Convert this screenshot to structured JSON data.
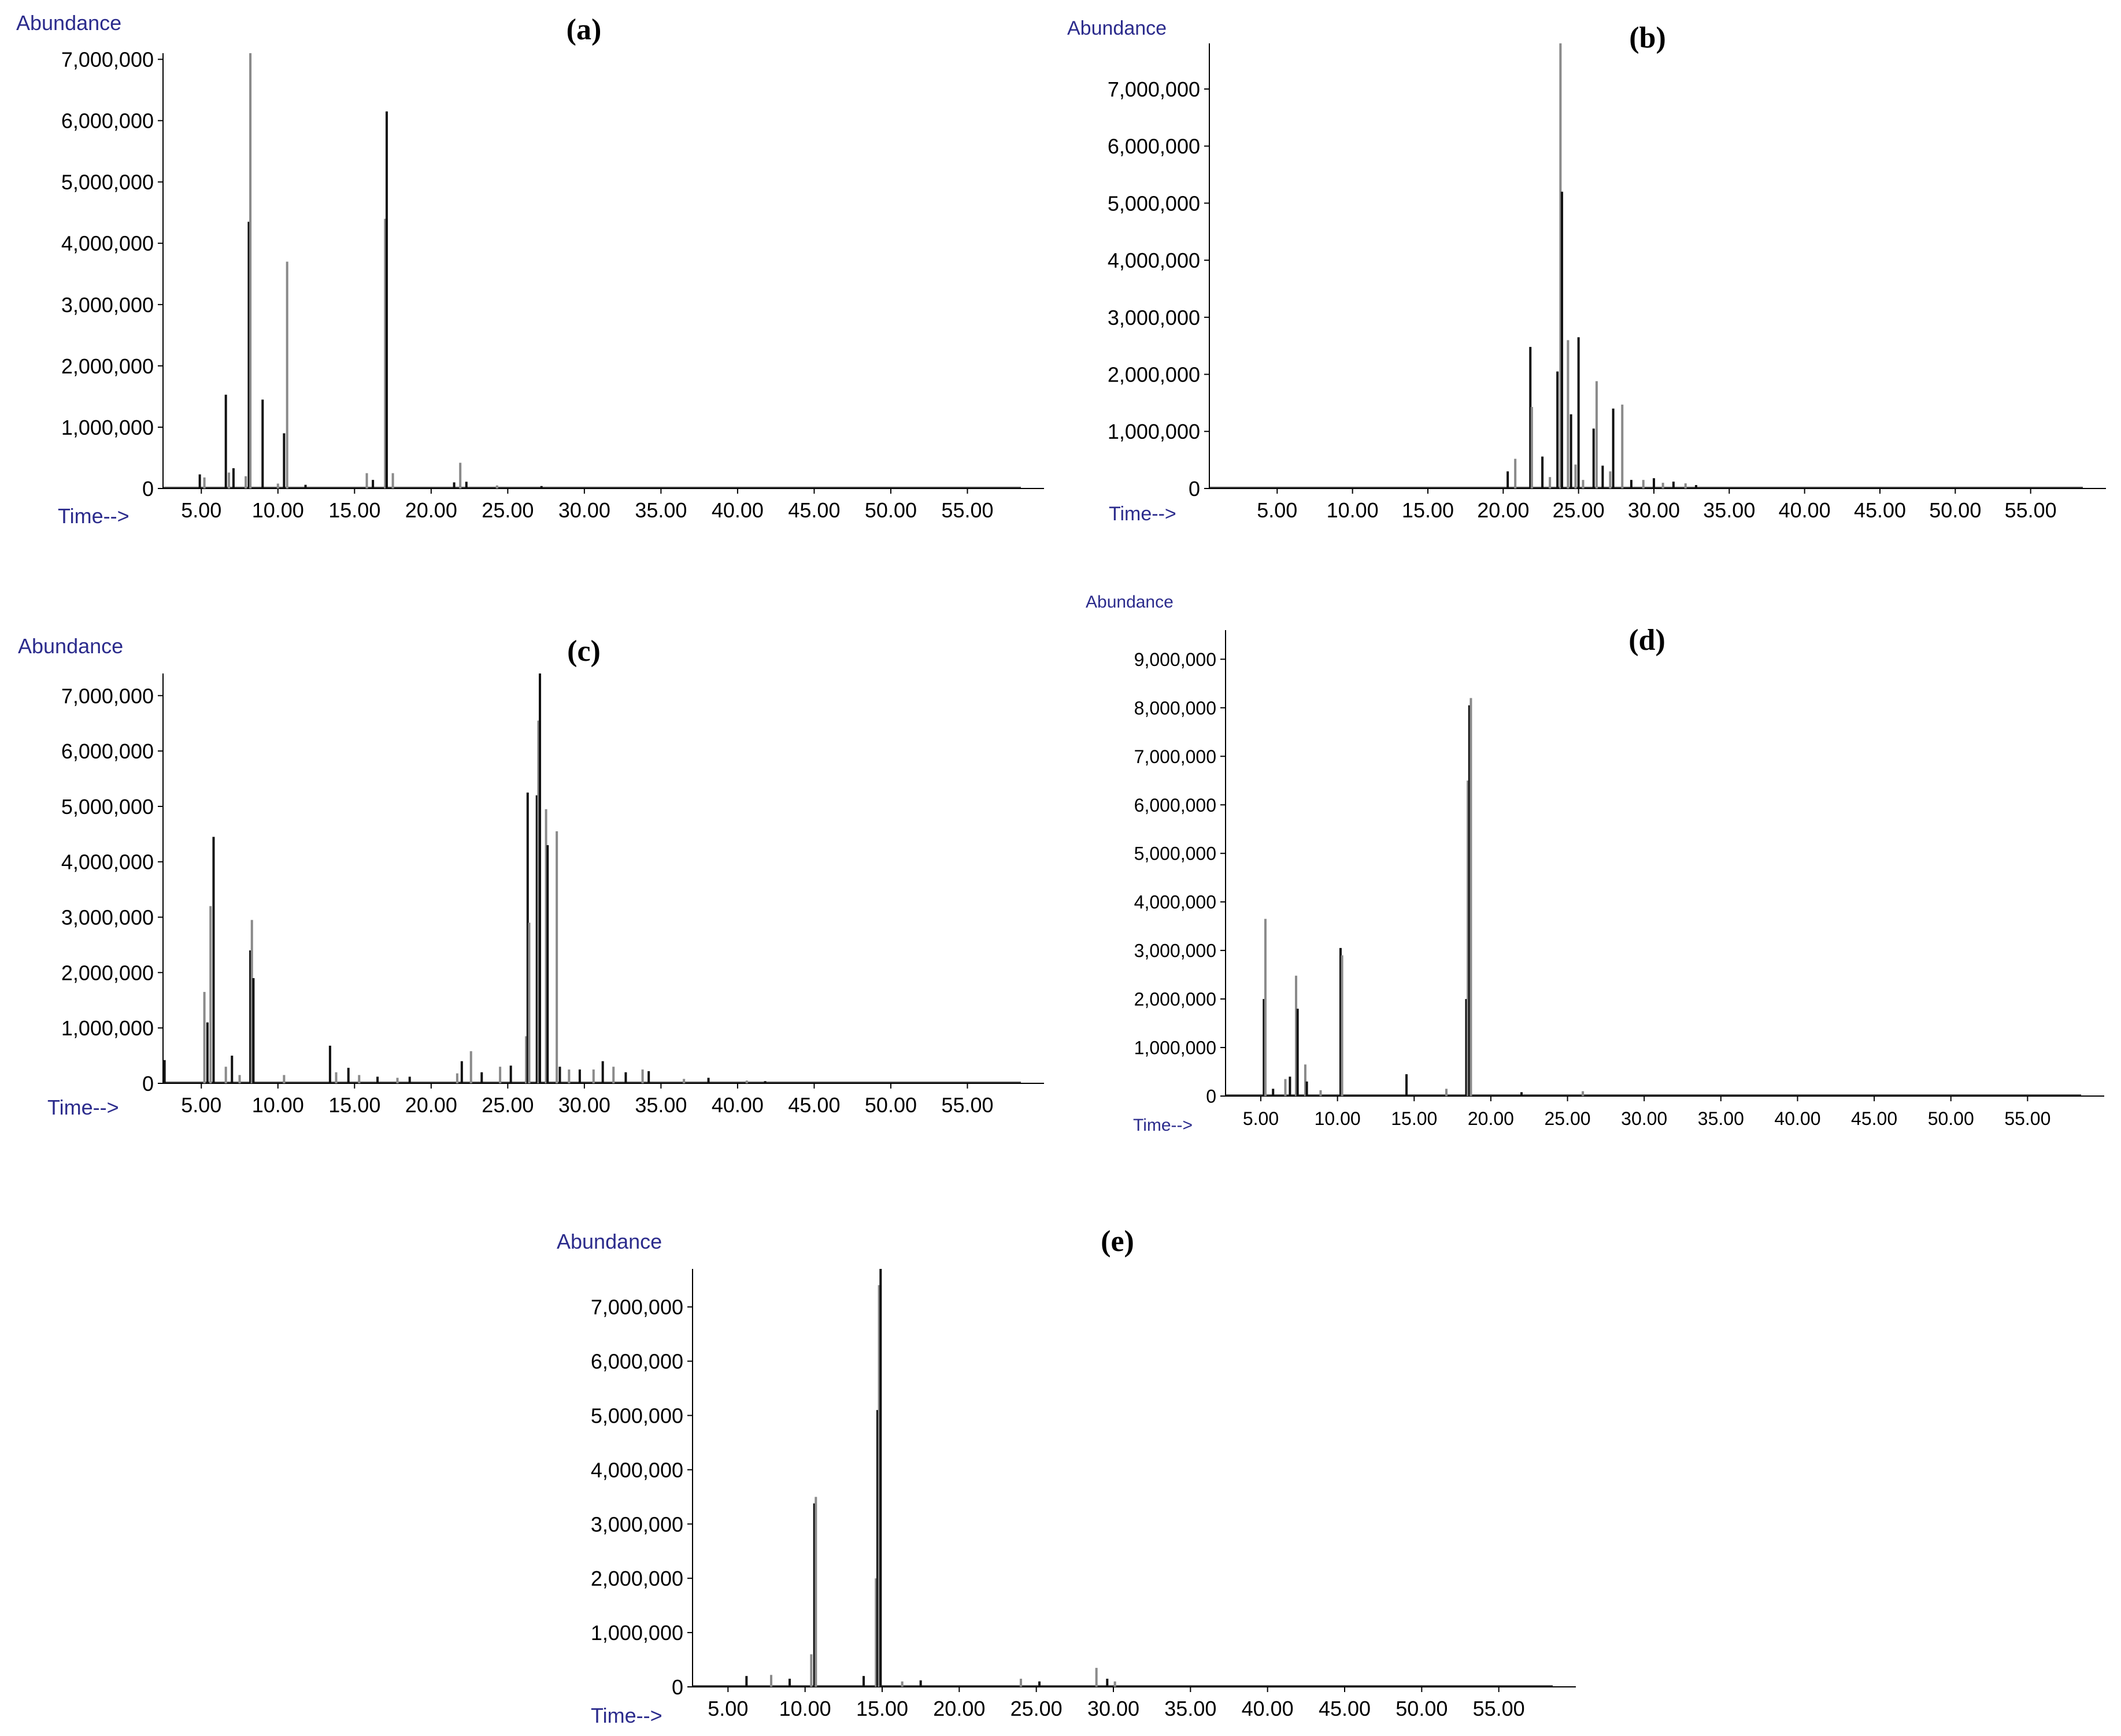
{
  "colors": {
    "axis_label": "#2b2b8c",
    "trace_dark": "#111111",
    "trace_light": "#8a8a8a",
    "axis": "#000000",
    "background": "#ffffff"
  },
  "chart_data": [
    {
      "panel": "(a)",
      "type": "line",
      "y_axis_title": "Abundance",
      "x_axis_title": "Time-->",
      "x_tick_labels": [
        "5.00",
        "10.00",
        "15.00",
        "20.00",
        "25.00",
        "30.00",
        "35.00",
        "40.00",
        "45.00",
        "50.00",
        "55.00"
      ],
      "y_tick_labels": [
        "0",
        "1,000,000",
        "2,000,000",
        "3,000,000",
        "4,000,000",
        "5,000,000",
        "6,000,000",
        "7,000,000"
      ],
      "xlim": [
        2.5,
        60
      ],
      "ylim": [
        0,
        7100000
      ],
      "peaks": [
        {
          "x": 4.9,
          "y": 230000
        },
        {
          "x": 5.2,
          "y": 180000
        },
        {
          "x": 6.6,
          "y": 1530000
        },
        {
          "x": 6.8,
          "y": 260000
        },
        {
          "x": 7.1,
          "y": 330000
        },
        {
          "x": 7.9,
          "y": 200000
        },
        {
          "x": 8.1,
          "y": 4350000
        },
        {
          "x": 8.2,
          "y": 7100000
        },
        {
          "x": 9.0,
          "y": 1450000
        },
        {
          "x": 10.0,
          "y": 80000
        },
        {
          "x": 10.4,
          "y": 900000
        },
        {
          "x": 10.6,
          "y": 3700000
        },
        {
          "x": 11.8,
          "y": 60000
        },
        {
          "x": 15.8,
          "y": 250000
        },
        {
          "x": 16.2,
          "y": 140000
        },
        {
          "x": 17.0,
          "y": 4400000
        },
        {
          "x": 17.1,
          "y": 6150000
        },
        {
          "x": 17.5,
          "y": 250000
        },
        {
          "x": 21.5,
          "y": 100000
        },
        {
          "x": 21.9,
          "y": 420000
        },
        {
          "x": 22.3,
          "y": 110000
        },
        {
          "x": 24.3,
          "y": 50000
        },
        {
          "x": 27.2,
          "y": 40000
        }
      ]
    },
    {
      "panel": "(b)",
      "type": "line",
      "y_axis_title": "Abundance",
      "x_axis_title": "Time-->",
      "x_tick_labels": [
        "5.00",
        "10.00",
        "15.00",
        "20.00",
        "25.00",
        "30.00",
        "35.00",
        "40.00",
        "45.00",
        "50.00",
        "55.00"
      ],
      "y_tick_labels": [
        "0",
        "1,000,000",
        "2,000,000",
        "3,000,000",
        "4,000,000",
        "5,000,000",
        "6,000,000",
        "7,000,000"
      ],
      "xlim": [
        0.5,
        60
      ],
      "ylim": [
        0,
        7800000
      ],
      "peaks": [
        {
          "x": 20.3,
          "y": 300000
        },
        {
          "x": 20.8,
          "y": 520000
        },
        {
          "x": 21.8,
          "y": 2480000
        },
        {
          "x": 21.9,
          "y": 1430000
        },
        {
          "x": 22.6,
          "y": 560000
        },
        {
          "x": 23.1,
          "y": 200000
        },
        {
          "x": 23.6,
          "y": 2050000
        },
        {
          "x": 23.8,
          "y": 7800000
        },
        {
          "x": 23.9,
          "y": 5200000
        },
        {
          "x": 24.3,
          "y": 2600000
        },
        {
          "x": 24.5,
          "y": 1300000
        },
        {
          "x": 24.8,
          "y": 420000
        },
        {
          "x": 25.0,
          "y": 2650000
        },
        {
          "x": 25.3,
          "y": 150000
        },
        {
          "x": 26.0,
          "y": 1050000
        },
        {
          "x": 26.2,
          "y": 1880000
        },
        {
          "x": 26.6,
          "y": 400000
        },
        {
          "x": 27.1,
          "y": 300000
        },
        {
          "x": 27.3,
          "y": 1400000
        },
        {
          "x": 27.9,
          "y": 1470000
        },
        {
          "x": 28.5,
          "y": 150000
        },
        {
          "x": 29.3,
          "y": 150000
        },
        {
          "x": 30.0,
          "y": 180000
        },
        {
          "x": 30.6,
          "y": 100000
        },
        {
          "x": 31.3,
          "y": 120000
        },
        {
          "x": 32.1,
          "y": 90000
        },
        {
          "x": 32.8,
          "y": 60000
        }
      ]
    },
    {
      "panel": "(c)",
      "type": "line",
      "y_axis_title": "Abundance",
      "x_axis_title": "Time-->",
      "x_tick_labels": [
        "5.00",
        "10.00",
        "15.00",
        "20.00",
        "25.00",
        "30.00",
        "35.00",
        "40.00",
        "45.00",
        "50.00",
        "55.00"
      ],
      "y_tick_labels": [
        "0",
        "1,000,000",
        "2,000,000",
        "3,000,000",
        "4,000,000",
        "5,000,000",
        "6,000,000",
        "7,000,000"
      ],
      "xlim": [
        2.5,
        60
      ],
      "ylim": [
        0,
        7400000
      ],
      "peaks": [
        {
          "x": 2.6,
          "y": 420000
        },
        {
          "x": 5.2,
          "y": 1650000
        },
        {
          "x": 5.4,
          "y": 1100000
        },
        {
          "x": 5.6,
          "y": 3200000
        },
        {
          "x": 5.8,
          "y": 4450000
        },
        {
          "x": 6.6,
          "y": 300000
        },
        {
          "x": 7.0,
          "y": 500000
        },
        {
          "x": 7.5,
          "y": 150000
        },
        {
          "x": 8.2,
          "y": 2400000
        },
        {
          "x": 8.3,
          "y": 2950000
        },
        {
          "x": 8.4,
          "y": 1900000
        },
        {
          "x": 10.4,
          "y": 150000
        },
        {
          "x": 13.4,
          "y": 680000
        },
        {
          "x": 13.8,
          "y": 200000
        },
        {
          "x": 14.6,
          "y": 280000
        },
        {
          "x": 15.3,
          "y": 150000
        },
        {
          "x": 16.5,
          "y": 120000
        },
        {
          "x": 17.8,
          "y": 100000
        },
        {
          "x": 18.6,
          "y": 120000
        },
        {
          "x": 21.7,
          "y": 180000
        },
        {
          "x": 22.0,
          "y": 400000
        },
        {
          "x": 22.6,
          "y": 580000
        },
        {
          "x": 23.3,
          "y": 200000
        },
        {
          "x": 24.5,
          "y": 300000
        },
        {
          "x": 25.2,
          "y": 320000
        },
        {
          "x": 26.2,
          "y": 850000
        },
        {
          "x": 26.3,
          "y": 5250000
        },
        {
          "x": 26.4,
          "y": 2900000
        },
        {
          "x": 26.9,
          "y": 5200000
        },
        {
          "x": 27.0,
          "y": 6550000
        },
        {
          "x": 27.1,
          "y": 7400000
        },
        {
          "x": 27.5,
          "y": 4950000
        },
        {
          "x": 27.6,
          "y": 4300000
        },
        {
          "x": 28.2,
          "y": 4550000
        },
        {
          "x": 28.4,
          "y": 300000
        },
        {
          "x": 29.0,
          "y": 250000
        },
        {
          "x": 29.7,
          "y": 250000
        },
        {
          "x": 30.6,
          "y": 250000
        },
        {
          "x": 31.2,
          "y": 400000
        },
        {
          "x": 31.9,
          "y": 300000
        },
        {
          "x": 32.7,
          "y": 200000
        },
        {
          "x": 33.8,
          "y": 250000
        },
        {
          "x": 34.2,
          "y": 220000
        },
        {
          "x": 36.5,
          "y": 80000
        },
        {
          "x": 38.1,
          "y": 100000
        },
        {
          "x": 40.6,
          "y": 50000
        },
        {
          "x": 41.8,
          "y": 40000
        }
      ]
    },
    {
      "panel": "(d)",
      "type": "line",
      "y_axis_title": "Abundance",
      "x_axis_title": "Time-->",
      "x_tick_labels": [
        "5.00",
        "10.00",
        "15.00",
        "20.00",
        "25.00",
        "30.00",
        "35.00",
        "40.00",
        "45.00",
        "50.00",
        "55.00"
      ],
      "y_tick_labels": [
        "0",
        "1,000,000",
        "2,000,000",
        "3,000,000",
        "4,000,000",
        "5,000,000",
        "6,000,000",
        "7,000,000",
        "8,000,000",
        "9,000,000"
      ],
      "xlim": [
        2.7,
        60
      ],
      "ylim": [
        0,
        9600000
      ],
      "peaks": [
        {
          "x": 5.2,
          "y": 2000000
        },
        {
          "x": 5.3,
          "y": 3650000
        },
        {
          "x": 5.8,
          "y": 150000
        },
        {
          "x": 6.6,
          "y": 350000
        },
        {
          "x": 6.9,
          "y": 400000
        },
        {
          "x": 7.3,
          "y": 2480000
        },
        {
          "x": 7.4,
          "y": 1800000
        },
        {
          "x": 7.9,
          "y": 650000
        },
        {
          "x": 8.0,
          "y": 300000
        },
        {
          "x": 8.9,
          "y": 120000
        },
        {
          "x": 10.2,
          "y": 3050000
        },
        {
          "x": 10.3,
          "y": 2900000
        },
        {
          "x": 14.5,
          "y": 450000
        },
        {
          "x": 17.1,
          "y": 150000
        },
        {
          "x": 18.4,
          "y": 2000000
        },
        {
          "x": 18.5,
          "y": 6500000
        },
        {
          "x": 18.6,
          "y": 8050000
        },
        {
          "x": 18.7,
          "y": 8200000
        },
        {
          "x": 22.0,
          "y": 80000
        },
        {
          "x": 26.0,
          "y": 100000
        }
      ]
    },
    {
      "panel": "(e)",
      "type": "line",
      "y_axis_title": "Abundance",
      "x_axis_title": "Time-->",
      "x_tick_labels": [
        "5.00",
        "10.00",
        "15.00",
        "20.00",
        "25.00",
        "30.00",
        "35.00",
        "40.00",
        "45.00",
        "50.00",
        "55.00"
      ],
      "y_tick_labels": [
        "0",
        "1,000,000",
        "2,000,000",
        "3,000,000",
        "4,000,000",
        "5,000,000",
        "6,000,000",
        "7,000,000"
      ],
      "xlim": [
        2.7,
        60
      ],
      "ylim": [
        0,
        7700000
      ],
      "peaks": [
        {
          "x": 6.2,
          "y": 200000
        },
        {
          "x": 7.8,
          "y": 220000
        },
        {
          "x": 9.0,
          "y": 150000
        },
        {
          "x": 10.4,
          "y": 600000
        },
        {
          "x": 10.6,
          "y": 3380000
        },
        {
          "x": 10.7,
          "y": 3500000
        },
        {
          "x": 13.8,
          "y": 200000
        },
        {
          "x": 14.6,
          "y": 2000000
        },
        {
          "x": 14.7,
          "y": 5100000
        },
        {
          "x": 14.8,
          "y": 7400000
        },
        {
          "x": 14.9,
          "y": 7700000
        },
        {
          "x": 16.3,
          "y": 100000
        },
        {
          "x": 17.5,
          "y": 120000
        },
        {
          "x": 24.0,
          "y": 150000
        },
        {
          "x": 25.2,
          "y": 100000
        },
        {
          "x": 28.9,
          "y": 350000
        },
        {
          "x": 29.6,
          "y": 150000
        },
        {
          "x": 30.1,
          "y": 100000
        }
      ]
    }
  ]
}
